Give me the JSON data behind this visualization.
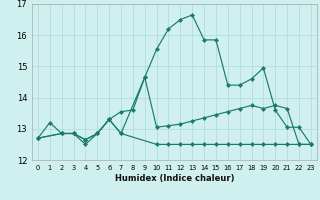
{
  "xlabel": "Humidex (Indice chaleur)",
  "bg_color": "#cff0ee",
  "grid_color": "#b0ddd8",
  "line_color": "#1a7a6e",
  "xlim": [
    -0.5,
    23.5
  ],
  "ylim": [
    12,
    17
  ],
  "yticks": [
    12,
    13,
    14,
    15,
    16,
    17
  ],
  "xticks": [
    0,
    1,
    2,
    3,
    4,
    5,
    6,
    7,
    8,
    9,
    10,
    11,
    12,
    13,
    14,
    15,
    16,
    17,
    18,
    19,
    20,
    21,
    22,
    23
  ],
  "line1_x": [
    0,
    1,
    2,
    3,
    4,
    5,
    6,
    7,
    8,
    9,
    10,
    11,
    12,
    13,
    14,
    15,
    16,
    17,
    18,
    19,
    20,
    21,
    22,
    23
  ],
  "line1_y": [
    12.7,
    13.2,
    12.85,
    12.85,
    12.65,
    12.85,
    13.3,
    13.55,
    13.6,
    14.65,
    15.55,
    16.2,
    16.5,
    16.65,
    15.85,
    15.85,
    14.4,
    14.4,
    14.6,
    14.95,
    13.6,
    13.05,
    13.05,
    12.5
  ],
  "line2_x": [
    0,
    2,
    3,
    4,
    5,
    6,
    7,
    9,
    10,
    11,
    12,
    13,
    14,
    15,
    16,
    17,
    18,
    19,
    20,
    21,
    22,
    23
  ],
  "line2_y": [
    12.7,
    12.85,
    12.85,
    12.65,
    12.85,
    13.3,
    12.85,
    14.65,
    13.05,
    13.1,
    13.15,
    13.25,
    13.35,
    13.45,
    13.55,
    13.65,
    13.75,
    13.65,
    13.75,
    13.65,
    12.5,
    12.5
  ],
  "line3_x": [
    0,
    2,
    3,
    4,
    5,
    6,
    7,
    10,
    11,
    12,
    13,
    14,
    15,
    16,
    17,
    18,
    19,
    20,
    21,
    22,
    23
  ],
  "line3_y": [
    12.7,
    12.85,
    12.85,
    12.5,
    12.85,
    13.3,
    12.85,
    12.5,
    12.5,
    12.5,
    12.5,
    12.5,
    12.5,
    12.5,
    12.5,
    12.5,
    12.5,
    12.5,
    12.5,
    12.5,
    12.5
  ],
  "marker_size": 2.5,
  "linewidth": 0.85
}
